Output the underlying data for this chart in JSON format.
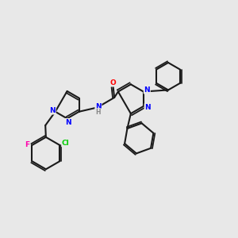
{
  "background_color": "#e8e8e8",
  "bond_color": "#1a1a1a",
  "atom_colors": {
    "N": "#0000ff",
    "O": "#ff0000",
    "Cl": "#00cc00",
    "F": "#ff00aa",
    "C": "#1a1a1a",
    "H": "#888888"
  },
  "figsize": [
    3.0,
    3.0
  ],
  "dpi": 100
}
